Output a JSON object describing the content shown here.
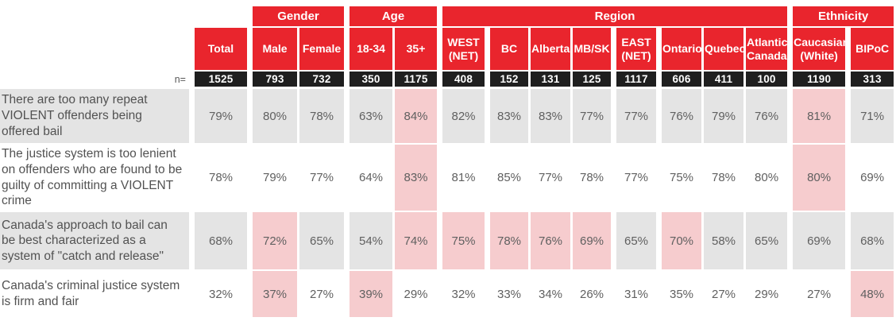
{
  "chart_data": {
    "type": "table",
    "n_label": "n=",
    "groups": [
      {
        "label": "Gender",
        "span": 2
      },
      {
        "label": "Age",
        "span": 2
      },
      {
        "label": "Region",
        "span": 8
      },
      {
        "label": "Ethnicity",
        "span": 2
      }
    ],
    "columns": [
      {
        "label": "Total",
        "n": "1525"
      },
      {
        "label": "Male",
        "n": "793"
      },
      {
        "label": "Female",
        "n": "732"
      },
      {
        "label": "18-34",
        "n": "350"
      },
      {
        "label": "35+",
        "n": "1175"
      },
      {
        "label": "WEST (NET)",
        "n": "408"
      },
      {
        "label": "BC",
        "n": "152"
      },
      {
        "label": "Alberta",
        "n": "131"
      },
      {
        "label": "MB/SK",
        "n": "125"
      },
      {
        "label": "EAST (NET)",
        "n": "1117"
      },
      {
        "label": "Ontario",
        "n": "606"
      },
      {
        "label": "Quebec",
        "n": "411"
      },
      {
        "label": "Atlantic Canada",
        "n": "100"
      },
      {
        "label": "Caucasian (White)",
        "n": "1190"
      },
      {
        "label": "BIPoC",
        "n": "313"
      }
    ],
    "rows": [
      {
        "label": "There are too many repeat VIOLENT offenders being offered bail",
        "values": [
          "79%",
          "80%",
          "78%",
          "63%",
          "84%",
          "82%",
          "83%",
          "83%",
          "77%",
          "77%",
          "76%",
          "79%",
          "76%",
          "81%",
          "71%"
        ],
        "highlighted": [
          4,
          13
        ]
      },
      {
        "label": "The justice system is too lenient on offenders who are found to be guilty of committing a VIOLENT crime",
        "values": [
          "78%",
          "79%",
          "77%",
          "64%",
          "83%",
          "81%",
          "85%",
          "77%",
          "78%",
          "77%",
          "75%",
          "78%",
          "80%",
          "80%",
          "69%"
        ],
        "highlighted": [
          4,
          13
        ]
      },
      {
        "label": "Canada's approach to bail can be best characterized as a system of \"catch and release\"",
        "values": [
          "68%",
          "72%",
          "65%",
          "54%",
          "74%",
          "75%",
          "78%",
          "76%",
          "69%",
          "65%",
          "70%",
          "58%",
          "65%",
          "69%",
          "68%"
        ],
        "highlighted": [
          1,
          4,
          5,
          6,
          7,
          8,
          10
        ]
      },
      {
        "label": "Canada's criminal justice system is firm and fair",
        "values": [
          "32%",
          "37%",
          "27%",
          "39%",
          "29%",
          "32%",
          "33%",
          "34%",
          "26%",
          "31%",
          "35%",
          "27%",
          "29%",
          "27%",
          "48%"
        ],
        "highlighted": [
          1,
          3,
          14
        ]
      }
    ]
  },
  "colors": {
    "header_red": "#E9252D",
    "highlight_pink": "#F6CCCE",
    "n_row_dark": "#1F1F1F"
  }
}
